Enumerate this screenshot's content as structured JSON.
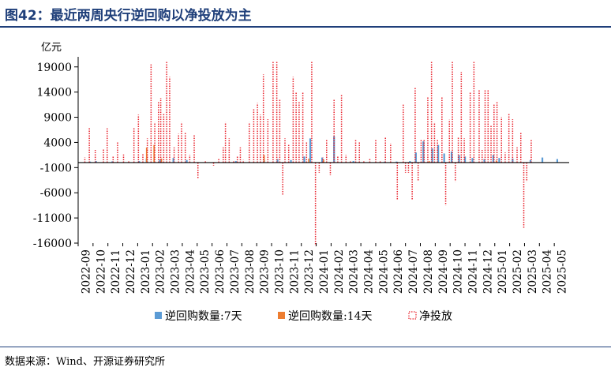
{
  "figure_title": "图42：最近两周央行逆回购以净投放为主",
  "source_text": "数据来源：Wind、开源证券研究所",
  "chart_data": {
    "type": "bar",
    "title": "图42：最近两周央行逆回购以净投放为主",
    "ylabel": "亿元",
    "ylim": [
      -16000,
      21000
    ],
    "yticks": [
      -16000,
      -11000,
      -6000,
      -1000,
      4000,
      9000,
      14000,
      19000
    ],
    "x_categories": [
      "2022-09",
      "2022-10",
      "2022-11",
      "2022-12",
      "2023-01",
      "2023-02",
      "2023-03",
      "2023-04",
      "2023-05",
      "2023-06",
      "2023-07",
      "2023-08",
      "2023-09",
      "2023-10",
      "2023-11",
      "2023-12",
      "2024-01",
      "2024-02",
      "2024-03",
      "2024-04",
      "2024-05",
      "2024-06",
      "2024-07",
      "2024-08",
      "2024-09",
      "2024-10",
      "2024-11",
      "2024-12",
      "2025-01",
      "2025-02",
      "2025-03",
      "2025-04",
      "2025-05"
    ],
    "grid": false,
    "legend_position": "bottom",
    "colors": {
      "rr7": "#5b9bd5",
      "rr14": "#ed7d31",
      "net": "#e8202a",
      "axis": "#000000"
    },
    "series": [
      {
        "name": "逆回购数量:7天",
        "kind": "bar",
        "color": "#5b9bd5",
        "values": [
          [
            0.8,
            200
          ],
          [
            1.2,
            300
          ],
          [
            2.3,
            250
          ],
          [
            4.1,
            300
          ],
          [
            4.6,
            800
          ],
          [
            5.5,
            600
          ],
          [
            6.4,
            900
          ],
          [
            7.3,
            500
          ],
          [
            10.6,
            300
          ],
          [
            12.5,
            400
          ],
          [
            13.4,
            700
          ],
          [
            14.3,
            500
          ],
          [
            15.2,
            1200
          ],
          [
            15.6,
            4800
          ],
          [
            16.4,
            1000
          ],
          [
            17.2,
            5200
          ],
          [
            18.5,
            300
          ],
          [
            20.6,
            200
          ],
          [
            21.4,
            200
          ],
          [
            22.3,
            300
          ],
          [
            22.7,
            2000
          ],
          [
            23.2,
            4200
          ],
          [
            23.8,
            2800
          ],
          [
            24.2,
            3500
          ],
          [
            24.6,
            1800
          ],
          [
            25.1,
            2200
          ],
          [
            25.6,
            1500
          ],
          [
            26.0,
            1200
          ],
          [
            26.5,
            900
          ],
          [
            27.3,
            700
          ],
          [
            27.9,
            1500
          ],
          [
            28.3,
            900
          ],
          [
            29.2,
            800
          ],
          [
            30.4,
            500
          ],
          [
            31.2,
            1000
          ],
          [
            32.2,
            700
          ]
        ]
      },
      {
        "name": "逆回购数量:14天",
        "kind": "bar",
        "color": "#ed7d31",
        "values": [
          [
            4.6,
            3000
          ],
          [
            5.1,
            3500
          ],
          [
            5.6,
            800
          ],
          [
            12.5,
            1500
          ],
          [
            15.5,
            800
          ],
          [
            16.5,
            600
          ],
          [
            23.6,
            300
          ],
          [
            28.1,
            400
          ]
        ]
      },
      {
        "name": "净投放",
        "kind": "bar-dotted",
        "color": "#e8202a",
        "values": [
          [
            0.45,
            1000
          ],
          [
            0.75,
            7000
          ],
          [
            1.15,
            2500
          ],
          [
            1.7,
            2700
          ],
          [
            1.95,
            6800
          ],
          [
            2.35,
            1200
          ],
          [
            2.65,
            4000
          ],
          [
            3.05,
            1600
          ],
          [
            3.4,
            300
          ],
          [
            3.75,
            7000
          ],
          [
            4.05,
            9500
          ],
          [
            4.35,
            1800
          ],
          [
            4.65,
            4800
          ],
          [
            4.9,
            19500
          ],
          [
            5.15,
            8000
          ],
          [
            5.4,
            12000
          ],
          [
            5.55,
            12800
          ],
          [
            5.75,
            9800
          ],
          [
            5.95,
            20000
          ],
          [
            6.15,
            17000
          ],
          [
            6.45,
            3000
          ],
          [
            6.75,
            5700
          ],
          [
            6.95,
            8000
          ],
          [
            7.2,
            6000
          ],
          [
            7.5,
            1500
          ],
          [
            7.8,
            5500
          ],
          [
            8.05,
            -3300
          ],
          [
            8.55,
            300
          ],
          [
            9.1,
            -600
          ],
          [
            9.45,
            700
          ],
          [
            9.75,
            3000
          ],
          [
            9.9,
            8000
          ],
          [
            10.15,
            4800
          ],
          [
            10.45,
            300
          ],
          [
            10.7,
            1200
          ],
          [
            10.9,
            3000
          ],
          [
            11.1,
            500
          ],
          [
            11.5,
            8000
          ],
          [
            11.8,
            10800
          ],
          [
            12.05,
            11800
          ],
          [
            12.25,
            9500
          ],
          [
            12.45,
            17500
          ],
          [
            12.75,
            8600
          ],
          [
            13.1,
            20000
          ],
          [
            13.35,
            20000
          ],
          [
            13.55,
            12700
          ],
          [
            13.75,
            -6500
          ],
          [
            13.9,
            4800
          ],
          [
            14.15,
            3500
          ],
          [
            14.45,
            17000
          ],
          [
            14.65,
            14000
          ],
          [
            14.85,
            12000
          ],
          [
            15.1,
            14000
          ],
          [
            15.35,
            4000
          ],
          [
            15.7,
            20000
          ],
          [
            15.95,
            -16500
          ],
          [
            16.2,
            -2000
          ],
          [
            16.45,
            1000
          ],
          [
            16.7,
            4500
          ],
          [
            16.95,
            -2500
          ],
          [
            17.2,
            12500
          ],
          [
            17.45,
            1200
          ],
          [
            17.7,
            13500
          ],
          [
            18.0,
            1500
          ],
          [
            18.3,
            300
          ],
          [
            18.65,
            4500
          ],
          [
            18.9,
            4000
          ],
          [
            19.2,
            300
          ],
          [
            19.6,
            800
          ],
          [
            20.0,
            4500
          ],
          [
            20.3,
            300
          ],
          [
            20.65,
            5000
          ],
          [
            21.0,
            3800
          ],
          [
            21.45,
            -7300
          ],
          [
            21.85,
            11500
          ],
          [
            22.0,
            -2000
          ],
          [
            22.2,
            -2000
          ],
          [
            22.45,
            -7500
          ],
          [
            22.65,
            15000
          ],
          [
            22.85,
            -3600
          ],
          [
            23.05,
            4500
          ],
          [
            23.25,
            4500
          ],
          [
            23.5,
            13000
          ],
          [
            23.75,
            20000
          ],
          [
            23.95,
            8000
          ],
          [
            24.15,
            4500
          ],
          [
            24.45,
            13000
          ],
          [
            24.7,
            -8500
          ],
          [
            24.95,
            8500
          ],
          [
            25.15,
            20000
          ],
          [
            25.35,
            -3800
          ],
          [
            25.55,
            5000
          ],
          [
            25.75,
            18000
          ],
          [
            25.95,
            4800
          ],
          [
            26.35,
            14000
          ],
          [
            26.6,
            20000
          ],
          [
            26.95,
            14500
          ],
          [
            27.15,
            2500
          ],
          [
            27.35,
            14500
          ],
          [
            27.55,
            14500
          ],
          [
            27.75,
            7500
          ],
          [
            27.95,
            11500
          ],
          [
            28.15,
            12000
          ],
          [
            28.45,
            9000
          ],
          [
            28.7,
            2000
          ],
          [
            28.95,
            9800
          ],
          [
            29.2,
            8600
          ],
          [
            29.5,
            3000
          ],
          [
            29.75,
            6000
          ],
          [
            29.95,
            -13000
          ],
          [
            30.15,
            -3800
          ],
          [
            30.45,
            4500
          ]
        ]
      }
    ]
  }
}
